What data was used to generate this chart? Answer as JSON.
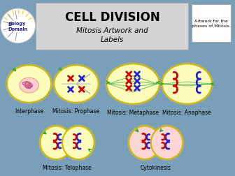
{
  "background_color": "#7a9fb8",
  "title_box_color": "#d4d4d4",
  "title_text": "CELL DIVISION",
  "subtitle_text": "Mitosis Artwork and\nLabels",
  "sidebar_text": "Artwork for the\nphases of Mitosis.",
  "cell_fill": "#fefcbb",
  "cell_fill2": "#fcd5d5",
  "cell_outline": "#d4b800",
  "cell_gradient_inner": "#fffde0",
  "labels": [
    "Interphase",
    "Mitosis: Prophase",
    "Mitosis: Metaphase",
    "Mitosis: Anaphase",
    "Mitosis: Telophase",
    "Cytokinesis"
  ],
  "red": "#cc0000",
  "blue": "#2222cc",
  "green": "#33aa33",
  "dna_purple": "#bb44cc",
  "dna_red": "#dd6666",
  "label_fontsize": 5.5,
  "title_fontsize": 12,
  "subtitle_fontsize": 7.5
}
